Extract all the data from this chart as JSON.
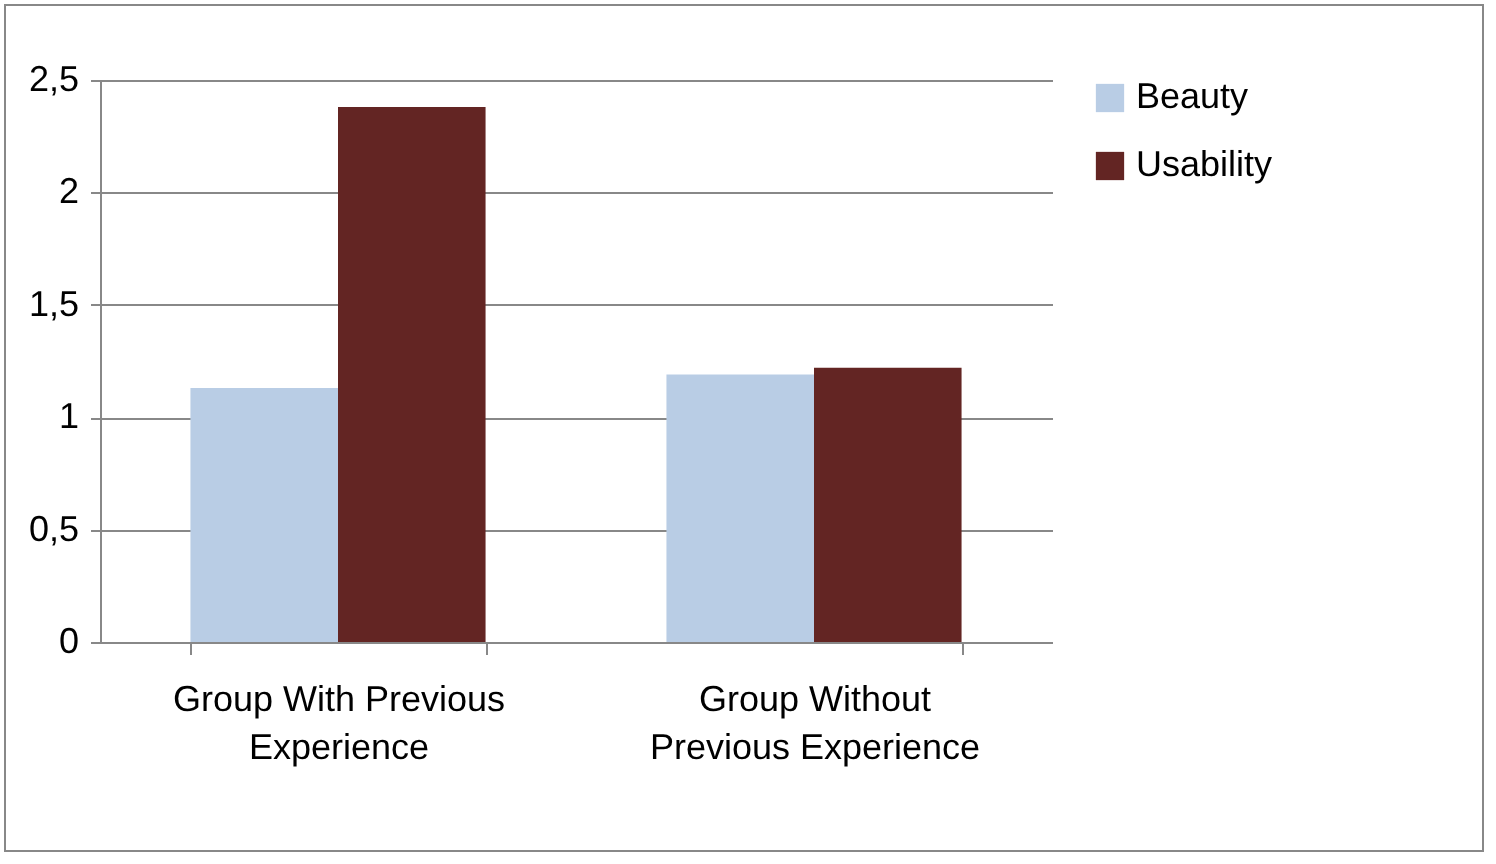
{
  "chart_data": {
    "type": "bar",
    "categories": [
      "Group With Previous Experience",
      "Group Without Previous Experience"
    ],
    "series": [
      {
        "name": "Beauty",
        "color": "#b9cde5",
        "values": [
          1.13,
          1.19
        ]
      },
      {
        "name": "Usability",
        "color": "#632523",
        "values": [
          2.38,
          1.22
        ]
      }
    ],
    "ylim": [
      0,
      2.5
    ],
    "yticks": [
      0,
      {
        "value": 0.5,
        "label": "0,5"
      },
      1,
      {
        "value": 1.5,
        "label": "1,5"
      },
      2,
      {
        "value": 2.5,
        "label": "2,5"
      }
    ],
    "grid": "y",
    "legend": "right"
  }
}
